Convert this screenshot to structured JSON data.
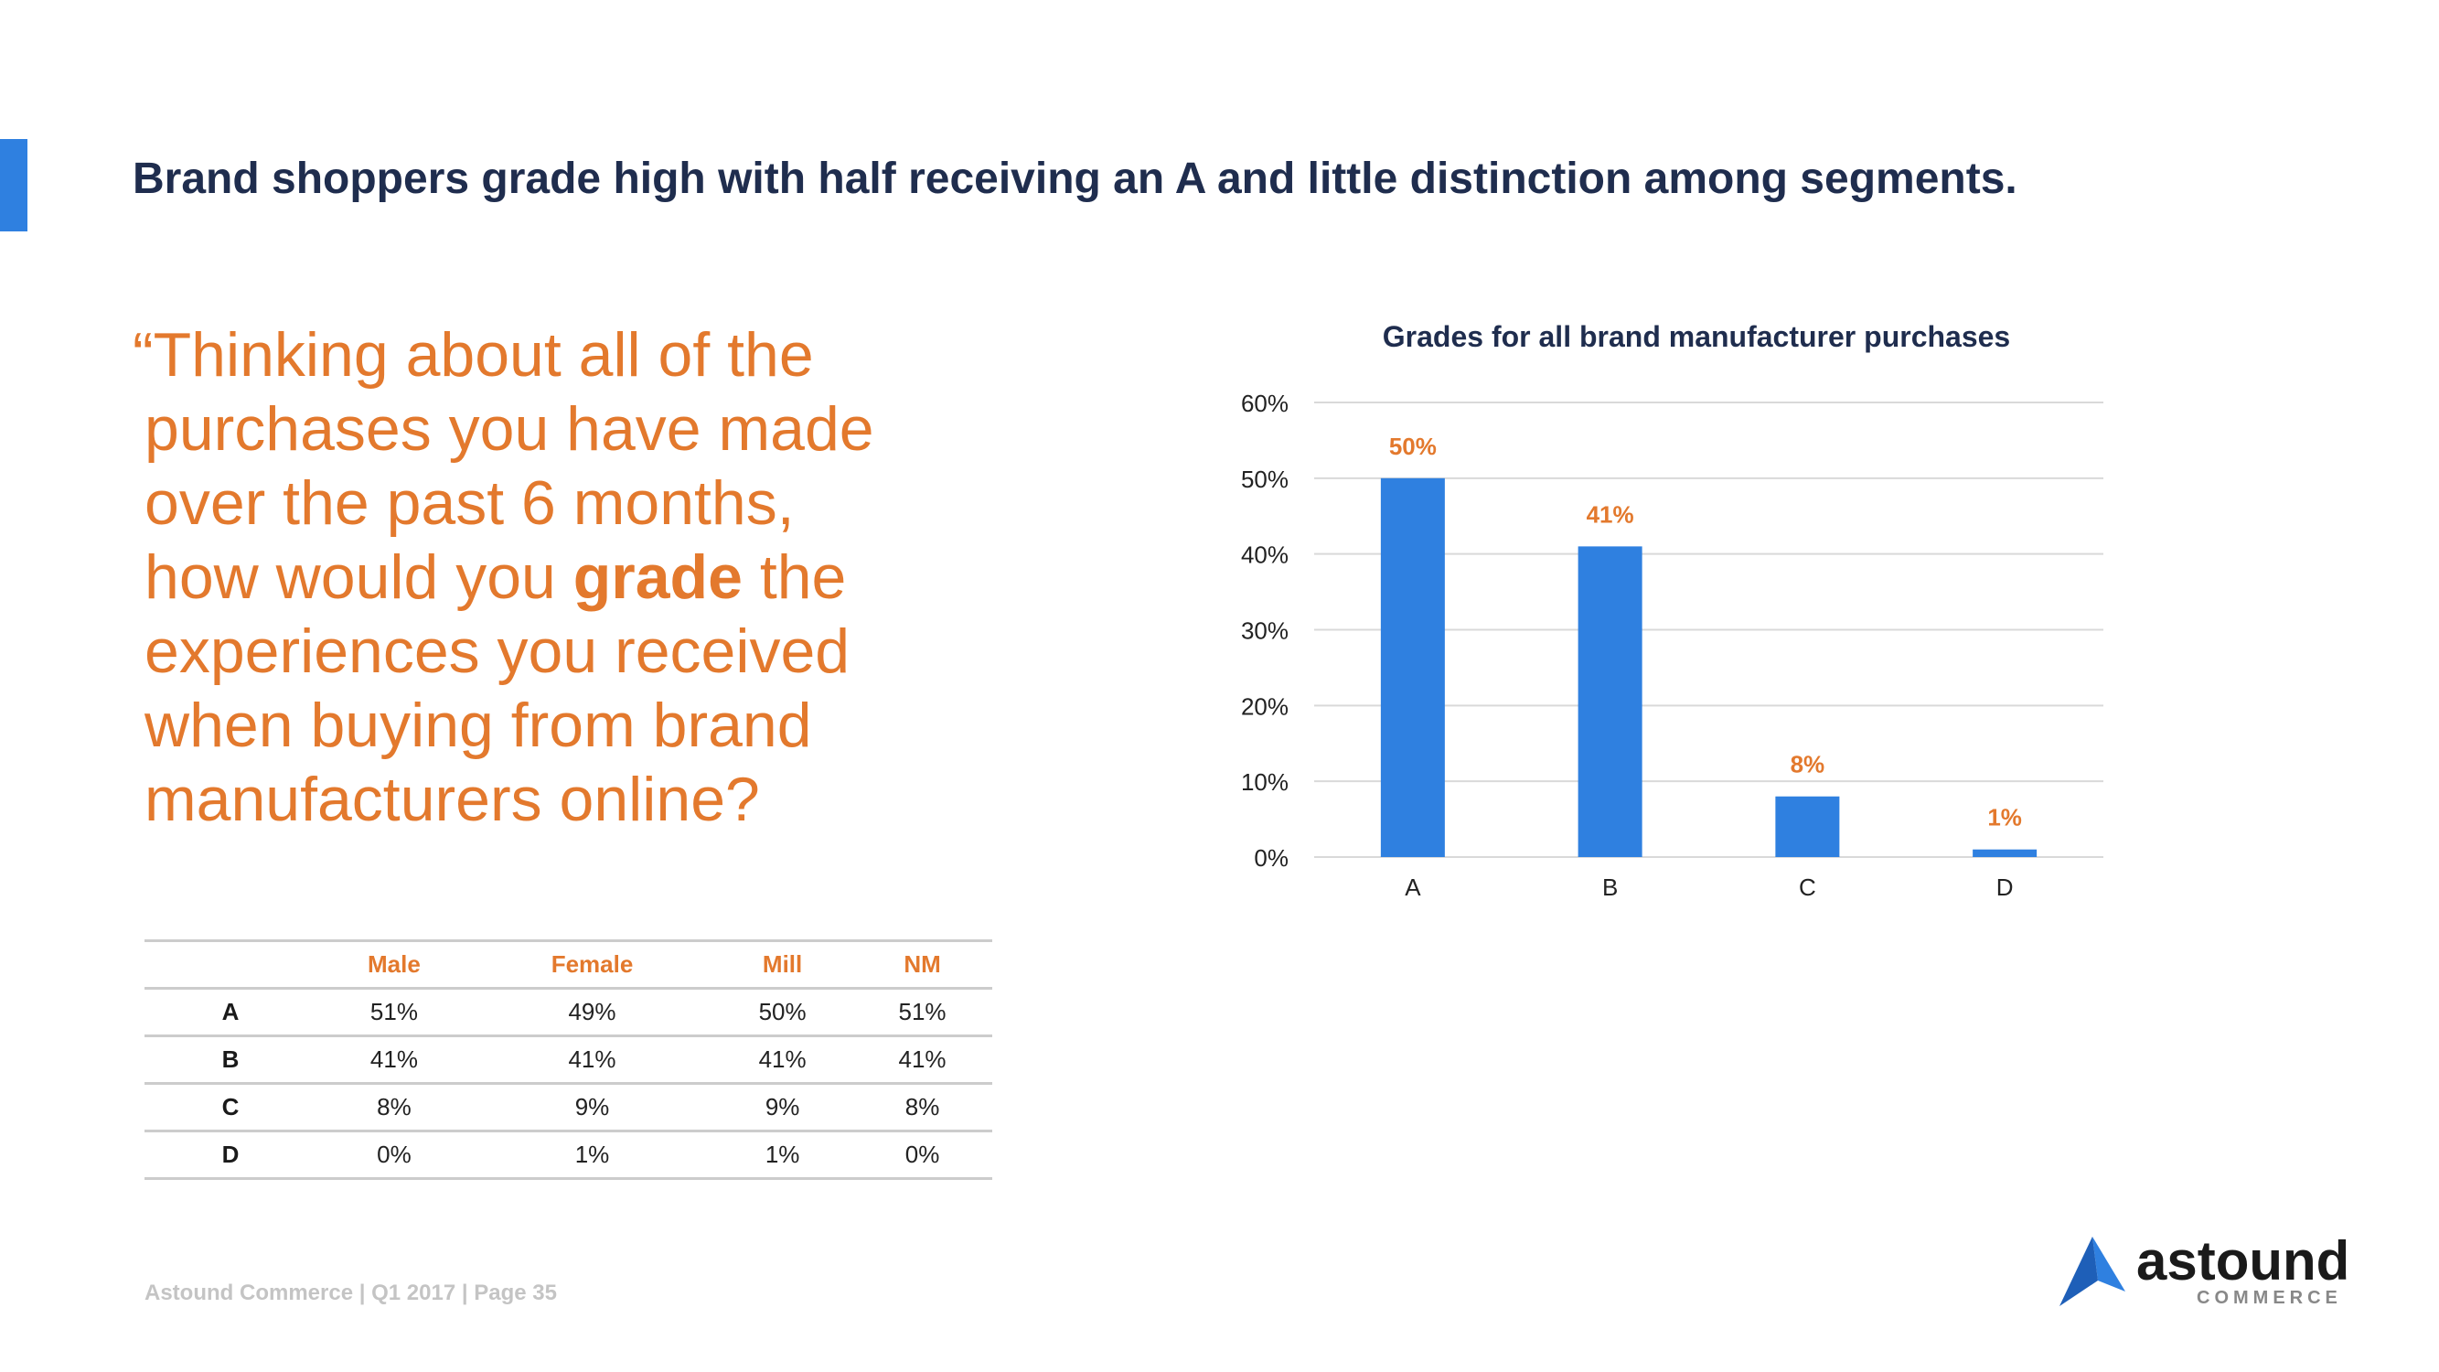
{
  "header": {
    "title": "Brand shoppers grade high with half receiving an A and little distinction among segments."
  },
  "question": {
    "line1": "“Thinking about all of the",
    "line2": "purchases you have made",
    "line3": "over the past 6 months,",
    "line4_before": "how would you ",
    "line4_bold": "grade",
    "line4_after": " the",
    "line5": "experiences you received",
    "line6": "when buying from brand",
    "line7": "manufacturers online?"
  },
  "segment_table": {
    "columns": [
      "",
      "Male",
      "Female",
      "Mill",
      "NM"
    ],
    "rows": [
      {
        "grade": "A",
        "values": [
          "51%",
          "49%",
          "50%",
          "51%"
        ]
      },
      {
        "grade": "B",
        "values": [
          "41%",
          "41%",
          "41%",
          "41%"
        ]
      },
      {
        "grade": "C",
        "values": [
          "8%",
          "9%",
          "9%",
          "8%"
        ]
      },
      {
        "grade": "D",
        "values": [
          "0%",
          "1%",
          "1%",
          "0%"
        ]
      }
    ]
  },
  "chart_data": {
    "type": "bar",
    "title": "Grades for all brand manufacturer purchases",
    "categories": [
      "A",
      "B",
      "C",
      "D"
    ],
    "values": [
      50,
      41,
      8,
      1
    ],
    "value_labels": [
      "50%",
      "41%",
      "8%",
      "1%"
    ],
    "ylim": [
      0,
      60
    ],
    "yticks": [
      0,
      10,
      20,
      30,
      40,
      50,
      60
    ],
    "ytick_labels": [
      "0%",
      "10%",
      "20%",
      "30%",
      "40%",
      "50%",
      "60%"
    ],
    "xlabel": "",
    "ylabel": "",
    "grid": true,
    "bar_color": "#2f80e0",
    "label_color": "#e3792d"
  },
  "footer": {
    "text": "Astound Commerce | Q1 2017 | Page 35"
  },
  "logo": {
    "word": "astound",
    "sub": "COMMERCE"
  },
  "colors": {
    "accent": "#2f80e0",
    "orange": "#e3792d",
    "navy": "#1f2d4e"
  }
}
